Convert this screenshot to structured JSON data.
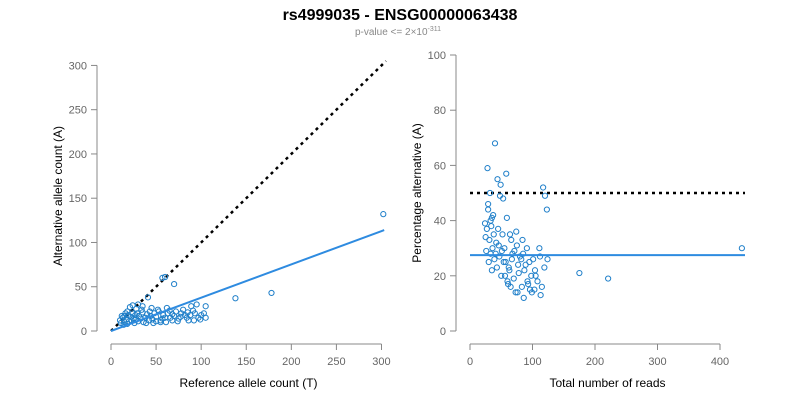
{
  "header": {
    "title": "rs4999035 - ENSG00000063438",
    "subtitle_prefix": "p-value <= 2×10",
    "subtitle_exponent": "-311"
  },
  "chart_data": [
    {
      "type": "scatter",
      "xlabel": "Reference allele count (T)",
      "ylabel": "Alternative allele count (A)",
      "xlim": [
        0,
        305
      ],
      "ylim": [
        0,
        305
      ],
      "xticks": [
        0,
        50,
        100,
        150,
        200,
        250,
        300
      ],
      "yticks": [
        0,
        50,
        100,
        150,
        200,
        250,
        300
      ],
      "grid": false,
      "reference_line": {
        "style": "dotted",
        "color": "#000000",
        "from": [
          0,
          0
        ],
        "to": [
          305,
          305
        ]
      },
      "fit_line": {
        "style": "solid",
        "color": "#2e8be0",
        "from": [
          0,
          0
        ],
        "to": [
          303,
          114
        ]
      },
      "points": [
        [
          302,
          132
        ],
        [
          178,
          43
        ],
        [
          138,
          37
        ],
        [
          57,
          60
        ],
        [
          60,
          61
        ],
        [
          70,
          53
        ],
        [
          41,
          38
        ],
        [
          95,
          30
        ],
        [
          91,
          23
        ],
        [
          105,
          28
        ],
        [
          89,
          28
        ],
        [
          103,
          20
        ],
        [
          100,
          18
        ],
        [
          105,
          15
        ],
        [
          97,
          15
        ],
        [
          93,
          20
        ],
        [
          85,
          21
        ],
        [
          82,
          18
        ],
        [
          78,
          20
        ],
        [
          75,
          14
        ],
        [
          70,
          17
        ],
        [
          68,
          12
        ],
        [
          65,
          23
        ],
        [
          63,
          20
        ],
        [
          60,
          15
        ],
        [
          58,
          18
        ],
        [
          55,
          12
        ],
        [
          53,
          22
        ],
        [
          50,
          16
        ],
        [
          48,
          20
        ],
        [
          46,
          13
        ],
        [
          44,
          17
        ],
        [
          42,
          12
        ],
        [
          40,
          19
        ],
        [
          38,
          15
        ],
        [
          36,
          10
        ],
        [
          35,
          21
        ],
        [
          33,
          14
        ],
        [
          31,
          17
        ],
        [
          30,
          11
        ],
        [
          28,
          25
        ],
        [
          27,
          18
        ],
        [
          26,
          9
        ],
        [
          25,
          14
        ],
        [
          24,
          20
        ],
        [
          23,
          12
        ],
        [
          22,
          16
        ],
        [
          21,
          27
        ],
        [
          20,
          11
        ],
        [
          19,
          18
        ],
        [
          18,
          8
        ],
        [
          17,
          13
        ],
        [
          16,
          20
        ],
        [
          15,
          10
        ],
        [
          14,
          7
        ],
        [
          13,
          15
        ],
        [
          12,
          17
        ],
        [
          11,
          9
        ],
        [
          10,
          12
        ],
        [
          24,
          29
        ],
        [
          30,
          30
        ],
        [
          35,
          28
        ],
        [
          45,
          26
        ],
        [
          52,
          24
        ],
        [
          62,
          26
        ],
        [
          72,
          22
        ],
        [
          80,
          24
        ],
        [
          88,
          18
        ],
        [
          55,
          10
        ],
        [
          47,
          9
        ],
        [
          39,
          9
        ],
        [
          66,
          15
        ],
        [
          74,
          11
        ],
        [
          84,
          15
        ],
        [
          92,
          12
        ],
        [
          99,
          13
        ],
        [
          57,
          14
        ],
        [
          43,
          22
        ],
        [
          34,
          24
        ],
        [
          29,
          20
        ],
        [
          18,
          22
        ],
        [
          15,
          17
        ],
        [
          50,
          11
        ],
        [
          61,
          10
        ],
        [
          68,
          19
        ],
        [
          77,
          16
        ],
        [
          86,
          12
        ],
        [
          27,
          13
        ]
      ]
    },
    {
      "type": "scatter",
      "xlabel": "Total number of reads",
      "ylabel": "Percentage alternative (A)",
      "xlim": [
        0,
        440
      ],
      "ylim": [
        0,
        100
      ],
      "xticks": [
        0,
        100,
        200,
        300,
        400
      ],
      "yticks": [
        0,
        20,
        40,
        60,
        80,
        100
      ],
      "grid": false,
      "reference_line": {
        "style": "dotted",
        "color": "#000000",
        "y": 50
      },
      "fit_line": {
        "style": "solid",
        "color": "#2e8be0",
        "y": 27.5
      },
      "points": [
        [
          435,
          30
        ],
        [
          221,
          19
        ],
        [
          175,
          21
        ],
        [
          117,
          52
        ],
        [
          120,
          49
        ],
        [
          123,
          44
        ],
        [
          111,
          30
        ],
        [
          124,
          26
        ],
        [
          119,
          23
        ],
        [
          115,
          16
        ],
        [
          113,
          13
        ],
        [
          108,
          18
        ],
        [
          104,
          22
        ],
        [
          101,
          26
        ],
        [
          98,
          20
        ],
        [
          96,
          15
        ],
        [
          92,
          18
        ],
        [
          89,
          24
        ],
        [
          86,
          12
        ],
        [
          83,
          16
        ],
        [
          80,
          27
        ],
        [
          78,
          21
        ],
        [
          75,
          31
        ],
        [
          73,
          14
        ],
        [
          70,
          19
        ],
        [
          68,
          28
        ],
        [
          66,
          33
        ],
        [
          63,
          22
        ],
        [
          61,
          17
        ],
        [
          59,
          41
        ],
        [
          57,
          25
        ],
        [
          55,
          30
        ],
        [
          53,
          48
        ],
        [
          52,
          35
        ],
        [
          50,
          20
        ],
        [
          48,
          49
        ],
        [
          47,
          27
        ],
        [
          45,
          37
        ],
        [
          43,
          23
        ],
        [
          42,
          32
        ],
        [
          40,
          68
        ],
        [
          39,
          26
        ],
        [
          37,
          42
        ],
        [
          36,
          30
        ],
        [
          35,
          22
        ],
        [
          34,
          38
        ],
        [
          33,
          28
        ],
        [
          32,
          50
        ],
        [
          31,
          33
        ],
        [
          30,
          25
        ],
        [
          29,
          44
        ],
        [
          28,
          59
        ],
        [
          27,
          37
        ],
        [
          26,
          29
        ],
        [
          25,
          34
        ],
        [
          24,
          39
        ],
        [
          44,
          55
        ],
        [
          49,
          53
        ],
        [
          58,
          57
        ],
        [
          64,
          35
        ],
        [
          71,
          29
        ],
        [
          77,
          24
        ],
        [
          82,
          26
        ],
        [
          87,
          22
        ],
        [
          93,
          17
        ],
        [
          99,
          14
        ],
        [
          105,
          20
        ],
        [
          60,
          18
        ],
        [
          54,
          25
        ],
        [
          46,
          31
        ],
        [
          38,
          35
        ],
        [
          41,
          28
        ],
        [
          67,
          26
        ],
        [
          74,
          36
        ],
        [
          85,
          28
        ],
        [
          91,
          30
        ],
        [
          62,
          23
        ],
        [
          56,
          20
        ],
        [
          51,
          29
        ],
        [
          35,
          41
        ],
        [
          65,
          16
        ],
        [
          76,
          14
        ],
        [
          84,
          33
        ],
        [
          95,
          25
        ],
        [
          103,
          15
        ],
        [
          112,
          27
        ],
        [
          29,
          46
        ],
        [
          33,
          40
        ]
      ]
    }
  ]
}
